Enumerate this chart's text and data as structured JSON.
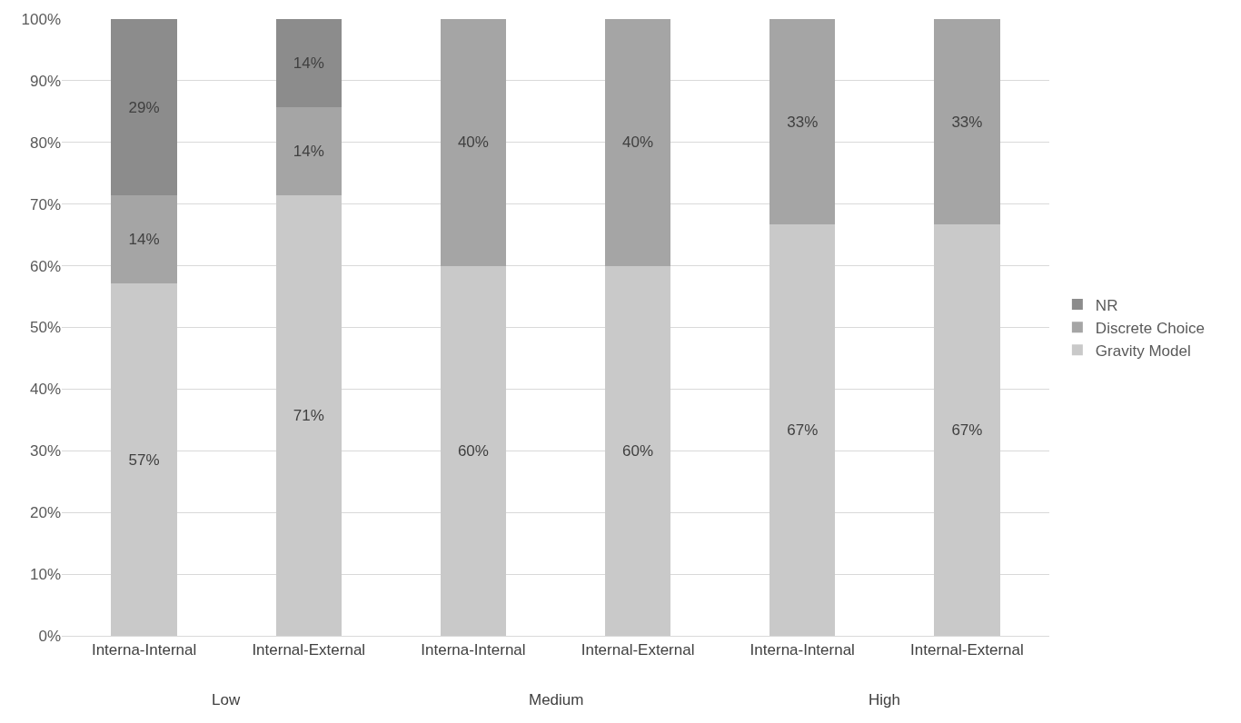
{
  "chart_data": {
    "type": "bar",
    "stacked": true,
    "categories": [
      "Interna-Internal",
      "Internal-External",
      "Interna-Internal",
      "Internal-External",
      "Interna-Internal",
      "Internal-External"
    ],
    "series": [
      {
        "name": "Gravity Model",
        "color": "#c9c9c9",
        "values": [
          57.1,
          71.4,
          60,
          60,
          66.7,
          66.7
        ],
        "value_labels": [
          "57%",
          "71%",
          "60%",
          "60%",
          "67%",
          "67%"
        ]
      },
      {
        "name": "Discrete Choice",
        "color": "#a5a5a5",
        "values": [
          14.3,
          14.3,
          40,
          40,
          33.3,
          33.3
        ],
        "value_labels": [
          "14%",
          "14%",
          "40%",
          "40%",
          "33%",
          "33%"
        ]
      },
      {
        "name": "NR",
        "color": "#8c8c8c",
        "values": [
          28.6,
          14.3,
          null,
          null,
          null,
          null
        ],
        "value_labels": [
          "29%",
          "14%",
          null,
          null,
          null,
          null
        ]
      }
    ],
    "ylim": [
      0,
      100
    ],
    "yticks": [
      {
        "value": 0,
        "label": "0%"
      },
      {
        "value": 10,
        "label": "10%"
      },
      {
        "value": 20,
        "label": "20%"
      },
      {
        "value": 30,
        "label": "30%"
      },
      {
        "value": 40,
        "label": "40%"
      },
      {
        "value": 50,
        "label": "50%"
      },
      {
        "value": 60,
        "label": "60%"
      },
      {
        "value": 70,
        "label": "70%"
      },
      {
        "value": 80,
        "label": "80%"
      },
      {
        "value": 90,
        "label": "90%"
      },
      {
        "value": 100,
        "label": "100%"
      }
    ],
    "annotations": [
      "Low",
      "Medium",
      "High"
    ],
    "grid": "y",
    "legend": "right"
  }
}
